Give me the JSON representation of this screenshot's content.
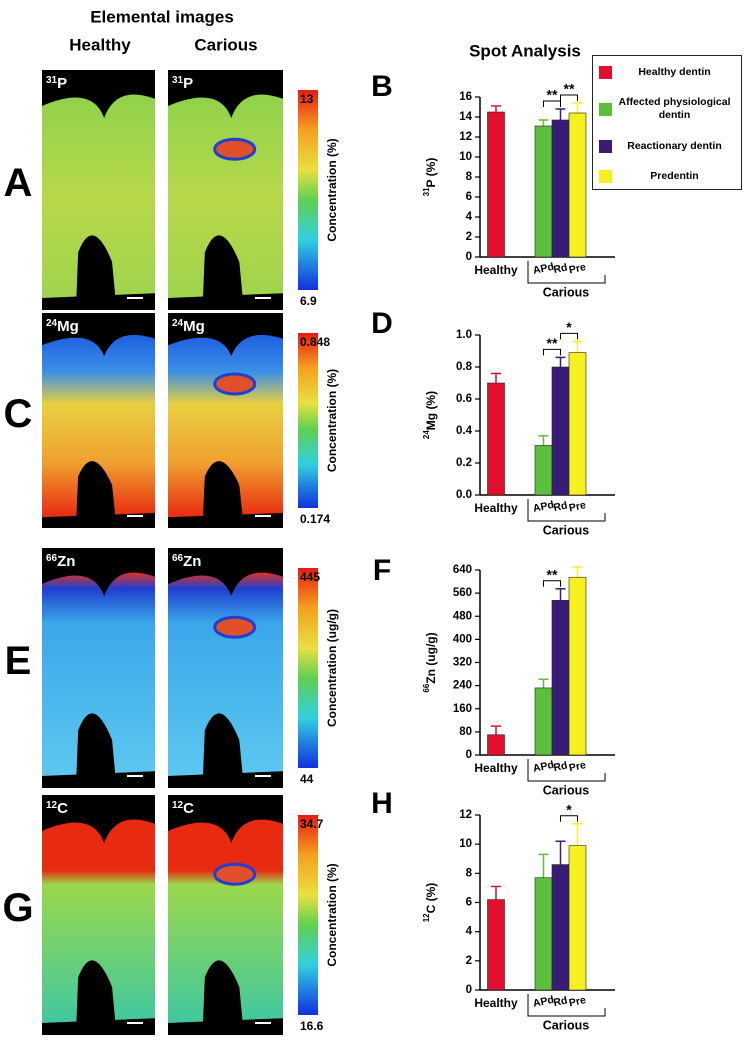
{
  "figure": {
    "heading": "Elemental images",
    "healthy_heading": "Healthy",
    "carious_heading": "Carious",
    "spot_heading": "Spot Analysis"
  },
  "image_rows": [
    {
      "letter": "A",
      "isotope": {
        "mass": "31",
        "symbol": "P"
      },
      "cbar_label": "Concentration (%)",
      "cbar_max": 13,
      "cbar_min": 6.9
    },
    {
      "letter": "C",
      "isotope": {
        "mass": "24",
        "symbol": "Mg"
      },
      "cbar_label": "Concentration (%)",
      "cbar_max": 0.848,
      "cbar_min": 0.174
    },
    {
      "letter": "E",
      "isotope": {
        "mass": "66",
        "symbol": "Zn"
      },
      "cbar_label": "Concentration (ug/g)",
      "cbar_max": 445,
      "cbar_min": 44
    },
    {
      "letter": "G",
      "isotope": {
        "mass": "12",
        "symbol": "C"
      },
      "cbar_label": "Concentration (%)",
      "cbar_max": 34.7,
      "cbar_min": 16.6
    }
  ],
  "legend": [
    {
      "label": "Healthy dentin",
      "color": "#e0102e"
    },
    {
      "label": "Affected physiological dentin",
      "color": "#5cbf3c"
    },
    {
      "label": "Reactionary dentin",
      "color": "#3a1c78"
    },
    {
      "label": "Predentin",
      "color": "#f5f01e"
    }
  ],
  "chart_data": [
    {
      "type": "bar",
      "letter": "B",
      "ylabel_sup": "31",
      "ylabel": "P (%)",
      "categories": [
        "Healthy",
        "APd",
        "Rd",
        "Pre"
      ],
      "group_label": "Carious",
      "values": [
        14.5,
        13.1,
        13.7,
        14.4
      ],
      "errors": [
        0.6,
        0.6,
        1.1,
        1.0
      ],
      "colors": [
        "#e0102e",
        "#5cbf3c",
        "#3a1c78",
        "#f5f01e"
      ],
      "ylim": [
        0,
        16
      ],
      "yticks": [
        0,
        2,
        4,
        6,
        8,
        10,
        12,
        14,
        16
      ],
      "annotations": [
        {
          "between": [
            "APd",
            "Rd"
          ],
          "label": "**"
        },
        {
          "between": [
            "Rd",
            "Pre"
          ],
          "label": "**"
        }
      ]
    },
    {
      "type": "bar",
      "letter": "D",
      "ylabel_sup": "24",
      "ylabel": "Mg (%)",
      "categories": [
        "Healthy",
        "APd",
        "Rd",
        "Pre"
      ],
      "group_label": "Carious",
      "values": [
        0.7,
        0.31,
        0.8,
        0.89
      ],
      "errors": [
        0.06,
        0.06,
        0.06,
        0.07
      ],
      "colors": [
        "#e0102e",
        "#5cbf3c",
        "#3a1c78",
        "#f5f01e"
      ],
      "ylim": [
        0,
        1
      ],
      "yticks": [
        {
          "value": 0,
          "label": "0.0"
        },
        0.2,
        0.4,
        0.6,
        0.8,
        {
          "value": 1,
          "label": "1.0"
        }
      ],
      "annotations": [
        {
          "between": [
            "APd",
            "Rd"
          ],
          "label": "**"
        },
        {
          "between": [
            "Rd",
            "Pre"
          ],
          "label": "*"
        }
      ]
    },
    {
      "type": "bar",
      "letter": "F",
      "ylabel_sup": "66",
      "ylabel": "Zn (ug/g)",
      "categories": [
        "Healthy",
        "APd",
        "Rd",
        "Pre"
      ],
      "group_label": "Carious",
      "values": [
        70,
        232,
        535,
        615
      ],
      "errors": [
        30,
        30,
        40,
        35
      ],
      "colors": [
        "#e0102e",
        "#5cbf3c",
        "#3a1c78",
        "#f5f01e"
      ],
      "ylim": [
        0,
        640
      ],
      "yticks": [
        0,
        80,
        160,
        240,
        320,
        400,
        480,
        560,
        640
      ],
      "annotations": [
        {
          "between": [
            "APd",
            "Rd"
          ],
          "label": "**"
        }
      ]
    },
    {
      "type": "bar",
      "letter": "H",
      "ylabel_sup": "12",
      "ylabel": "C (%)",
      "categories": [
        "Healthy",
        "APd",
        "Rd",
        "Pre"
      ],
      "group_label": "Carious",
      "values": [
        6.2,
        7.7,
        8.6,
        9.9
      ],
      "errors": [
        0.9,
        1.6,
        1.6,
        1.5
      ],
      "colors": [
        "#e0102e",
        "#5cbf3c",
        "#3a1c78",
        "#f5f01e"
      ],
      "ylim": [
        0,
        12
      ],
      "yticks": [
        0,
        2,
        4,
        6,
        8,
        10,
        12
      ],
      "annotations": [
        {
          "between": [
            "Rd",
            "Pre"
          ],
          "label": "*"
        }
      ]
    }
  ]
}
